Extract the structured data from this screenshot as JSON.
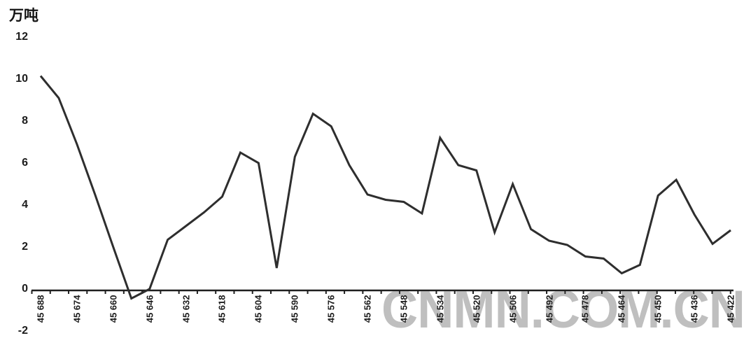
{
  "chart_data": {
    "type": "line",
    "title": "",
    "ylabel": "万吨",
    "x_serials": [
      45688,
      45681,
      45674,
      45667,
      45660,
      45653,
      45646,
      45639,
      45632,
      45625,
      45618,
      45611,
      45604,
      45597,
      45590,
      45583,
      45576,
      45569,
      45562,
      45555,
      45548,
      45541,
      45534,
      45527,
      45520,
      45513,
      45506,
      45499,
      45492,
      45485,
      45478,
      45471,
      45464,
      45457,
      45450,
      45443,
      45436,
      45429,
      45422
    ],
    "values": [
      10.15,
      9.1,
      6.9,
      4.5,
      2.0,
      -0.45,
      0.0,
      2.35,
      3.0,
      3.65,
      4.4,
      6.5,
      6.0,
      1.0,
      6.3,
      8.35,
      7.75,
      5.9,
      4.5,
      4.25,
      4.15,
      3.6,
      7.2,
      5.9,
      5.65,
      2.7,
      5.0,
      2.85,
      2.3,
      2.1,
      1.55,
      1.45,
      0.75,
      1.15,
      4.45,
      5.2,
      3.55,
      2.15,
      2.8
    ],
    "categories": [
      "45 688",
      "45 674",
      "45 660",
      "45 646",
      "45 632",
      "45 618",
      "45 604",
      "45 590",
      "45 576",
      "45 562",
      "45 548",
      "45 534",
      "45 520",
      "45 506",
      "45 492",
      "45 478",
      "45 464",
      "45 450",
      "45 436",
      "45 422"
    ],
    "ylim": [
      -2,
      12
    ],
    "yticks": [
      12,
      10,
      8,
      6,
      4,
      2,
      0,
      -2
    ],
    "grid": "off",
    "legend": "none",
    "line_color": "#2e2e2e",
    "axis_color": "#1f1f1f"
  },
  "watermark": {
    "text": "CNMN.COM.CN",
    "color": "#bfbfbf"
  }
}
